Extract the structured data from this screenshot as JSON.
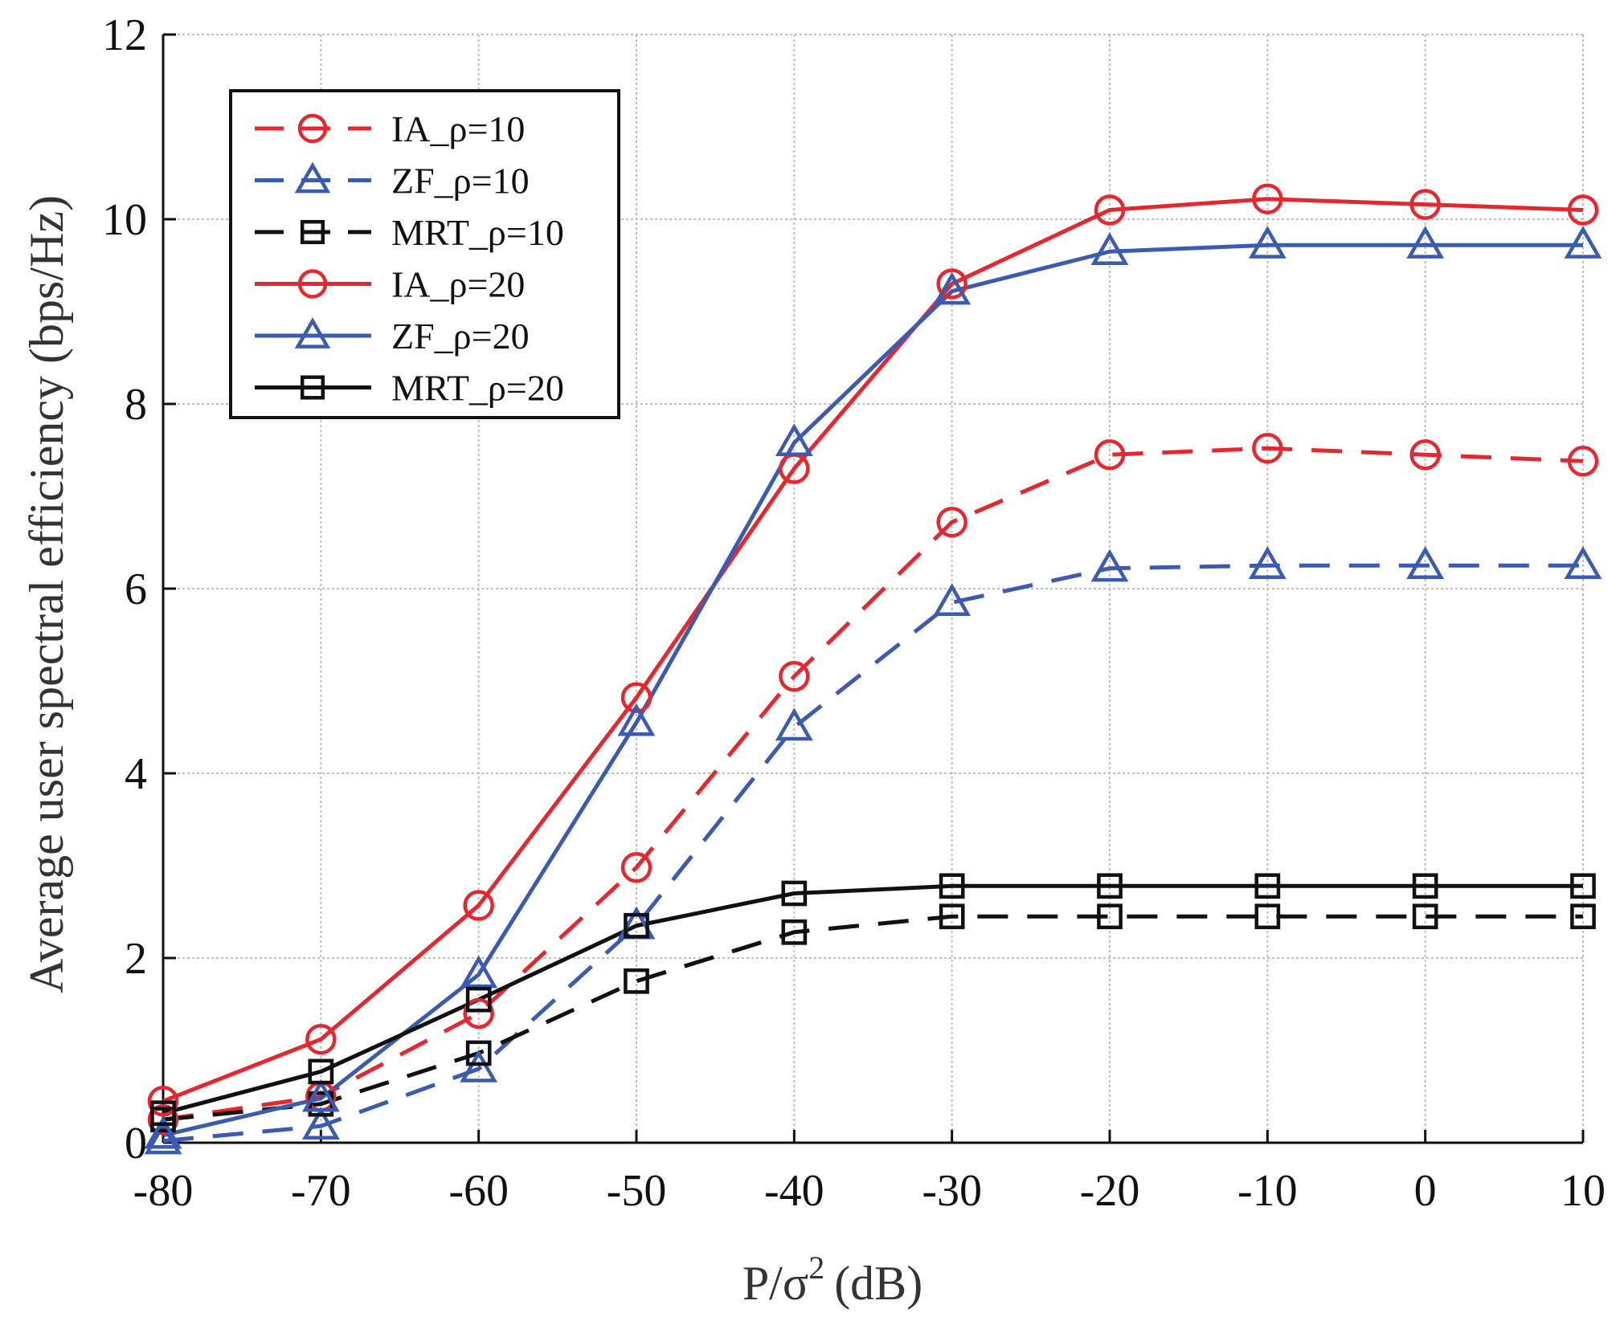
{
  "chart_data": {
    "type": "line",
    "title": "",
    "xlabel": "P/σ",
    "xlabel_superscript": "2",
    "xlabel_unit": "(dB)",
    "ylabel": "Average user spectral efficiency (bps/Hz)",
    "x": [
      -80,
      -70,
      -60,
      -50,
      -40,
      -30,
      -20,
      -10,
      0,
      10
    ],
    "xlim": [
      -80,
      10
    ],
    "ylim": [
      0,
      12
    ],
    "xticks": [
      "-80",
      "-70",
      "-60",
      "-50",
      "-40",
      "-30",
      "-20",
      "-10",
      "0",
      "10"
    ],
    "yticks": [
      "0",
      "2",
      "4",
      "6",
      "8",
      "10",
      "12"
    ],
    "grid": true,
    "legend_position": "top-left",
    "series": [
      {
        "name": "IA_ρ=10",
        "color": "#e8262d",
        "dash": "dashed",
        "marker": "circle",
        "values": [
          0.25,
          0.5,
          1.4,
          2.98,
          5.05,
          6.72,
          7.45,
          7.52,
          7.45,
          7.38
        ]
      },
      {
        "name": "ZF_ρ=10",
        "color": "#3b5bb0",
        "dash": "dashed",
        "marker": "triangle",
        "values": [
          0.02,
          0.18,
          0.8,
          2.35,
          4.5,
          5.85,
          6.22,
          6.25,
          6.25,
          6.25
        ]
      },
      {
        "name": "MRT_ρ=10",
        "color": "#111111",
        "dash": "dashed",
        "marker": "square",
        "values": [
          0.25,
          0.42,
          0.97,
          1.75,
          2.28,
          2.45,
          2.45,
          2.45,
          2.45,
          2.45
        ]
      },
      {
        "name": "IA_ρ=20",
        "color": "#e8262d",
        "dash": "solid",
        "marker": "circle",
        "values": [
          0.45,
          1.12,
          2.57,
          4.82,
          7.3,
          9.3,
          10.1,
          10.22,
          10.16,
          10.1
        ]
      },
      {
        "name": "ZF_ρ=20",
        "color": "#3b5bb0",
        "dash": "solid",
        "marker": "triangle",
        "values": [
          0.08,
          0.48,
          1.82,
          4.55,
          7.58,
          9.22,
          9.65,
          9.72,
          9.72,
          9.72
        ]
      },
      {
        "name": "MRT_ρ=20",
        "color": "#111111",
        "dash": "solid",
        "marker": "square",
        "values": [
          0.32,
          0.77,
          1.55,
          2.35,
          2.7,
          2.78,
          2.78,
          2.78,
          2.78,
          2.78
        ]
      }
    ]
  }
}
